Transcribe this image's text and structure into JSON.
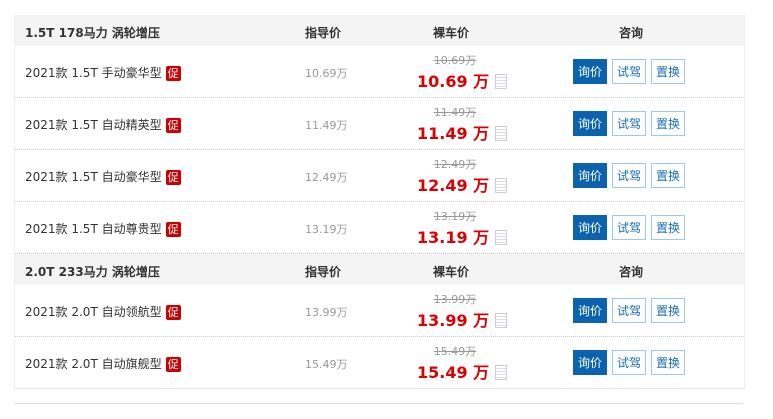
{
  "columns": {
    "guide": "指导价",
    "nude": "裸车价",
    "consult": "咨询"
  },
  "groups": [
    {
      "title": "1.5T 178马力 涡轮增压",
      "rows": [
        {
          "name": "2021款 1.5T 手动豪华型",
          "promo": "促",
          "guide": "10.69万",
          "old": "10.69万",
          "price": "10.69 万"
        },
        {
          "name": "2021款 1.5T 自动精英型",
          "promo": "促",
          "guide": "11.49万",
          "old": "11.49万",
          "price": "11.49 万"
        },
        {
          "name": "2021款 1.5T 自动豪华型",
          "promo": "促",
          "guide": "12.49万",
          "old": "12.49万",
          "price": "12.49 万"
        },
        {
          "name": "2021款 1.5T 自动尊贵型",
          "promo": "促",
          "guide": "13.19万",
          "old": "13.19万",
          "price": "13.19 万"
        }
      ]
    },
    {
      "title": "2.0T 233马力 涡轮增压",
      "rows": [
        {
          "name": "2021款 2.0T 自动领航型",
          "promo": "促",
          "guide": "13.99万",
          "old": "13.99万",
          "price": "13.99 万"
        },
        {
          "name": "2021款 2.0T 自动旗舰型",
          "promo": "促",
          "guide": "15.49万",
          "old": "15.49万",
          "price": "15.49 万"
        }
      ]
    }
  ],
  "buttons": {
    "inquire": "询价",
    "test_drive": "试驾",
    "trade_in": "置换"
  },
  "colors": {
    "price": "#dd0000",
    "primary_button": "#0b62ae",
    "promo": "#cc0000"
  }
}
